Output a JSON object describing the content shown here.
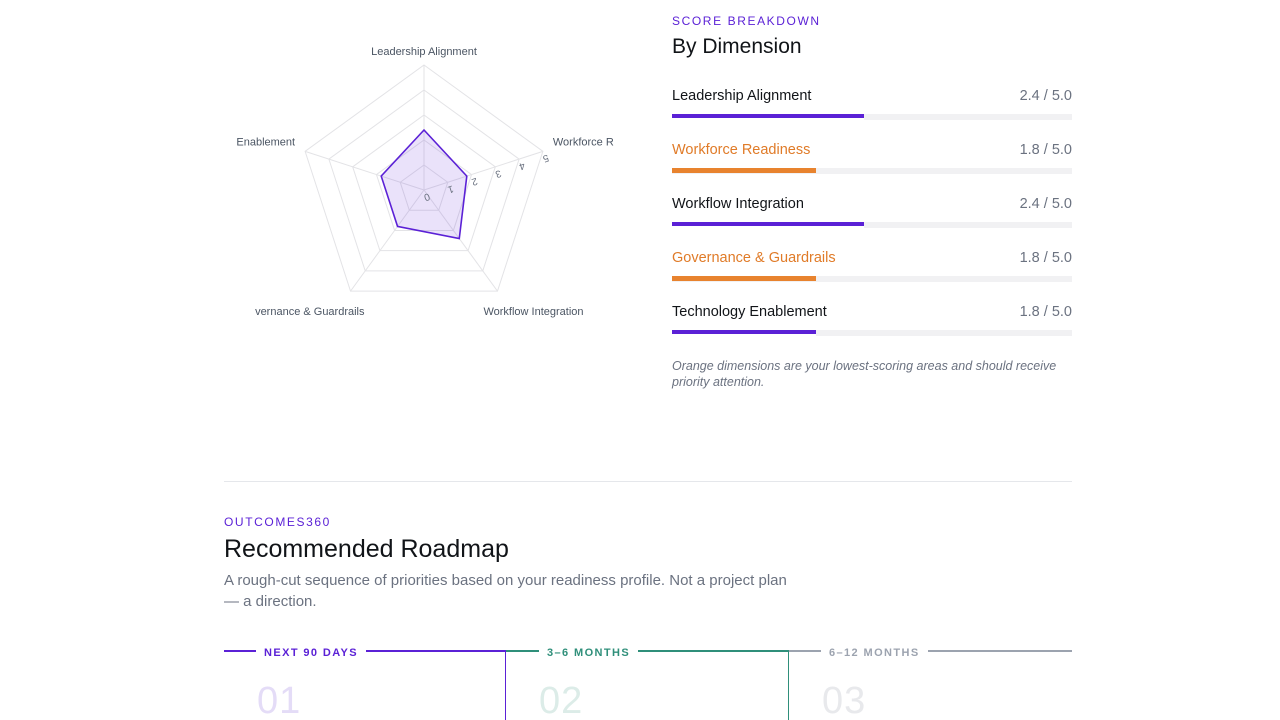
{
  "chart_data": {
    "type": "radar",
    "axes": [
      "Leadership Alignment",
      "Workforce Readiness",
      "Workflow Integration",
      "Governance & Guardrails",
      "Technology Enablement"
    ],
    "axis_labels_visible": [
      "Leadership Alignment",
      "Workforce R",
      "Workflow Integration",
      "vernance & Guardrails",
      "Enablement"
    ],
    "values": [
      2.4,
      1.8,
      2.4,
      1.8,
      1.8
    ],
    "rlim": [
      0,
      5
    ],
    "rticks": [
      "0",
      "1",
      "2",
      "3",
      "4",
      "5"
    ],
    "colors": {
      "line": "#5b21d6",
      "fill": "#5b21d6",
      "grid": "#e3e3e6"
    }
  },
  "breakdown": {
    "eyebrow": "SCORE BREAKDOWN",
    "title": "By Dimension",
    "dimensions": [
      {
        "name": "Leadership Alignment",
        "score_text": "2.4 / 5.0",
        "score": 2.4,
        "max": 5.0,
        "low": false
      },
      {
        "name": "Workforce Readiness",
        "score_text": "1.8 / 5.0",
        "score": 1.8,
        "max": 5.0,
        "low": true
      },
      {
        "name": "Workflow Integration",
        "score_text": "2.4 / 5.0",
        "score": 2.4,
        "max": 5.0,
        "low": false
      },
      {
        "name": "Governance & Guardrails",
        "score_text": "1.8 / 5.0",
        "score": 1.8,
        "max": 5.0,
        "low": true
      },
      {
        "name": "Technology Enablement",
        "score_text": "1.8 / 5.0",
        "score": 1.8,
        "max": 5.0,
        "low": false
      }
    ],
    "note": "Orange dimensions are your lowest-scoring areas and should receive priority attention."
  },
  "roadmap": {
    "eyebrow": "OUTCOMES360",
    "title": "Recommended Roadmap",
    "subtitle": "A rough-cut sequence of priorities based on your readiness profile. Not a project plan — a direction.",
    "phases": [
      {
        "label": "NEXT 90 DAYS",
        "number": "01",
        "color": "#5b21d6",
        "num_color": "#e4dcf7"
      },
      {
        "label": "3–6 MONTHS",
        "number": "02",
        "color": "#2f8f7a",
        "num_color": "#dcece8"
      },
      {
        "label": "6–12 MONTHS",
        "number": "03",
        "color": "#9ca3af",
        "num_color": "#e8e9ec"
      }
    ]
  },
  "colors": {
    "accent": "#5b21d6",
    "low": "#e8832e"
  }
}
